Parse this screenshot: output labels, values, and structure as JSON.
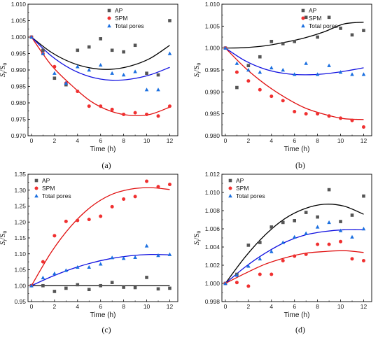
{
  "colors": {
    "AP": "#555555",
    "SPM": "#f03030",
    "Total pores": "#1a6fe0",
    "fitAP": "#000000",
    "fitSPM": "#e01010",
    "fitTotal": "#1010e0"
  },
  "chart_data": [
    {
      "type": "scatter",
      "panel_label": "(a)",
      "xlabel": "Time (h)",
      "ylabel": "S_i/S_0",
      "xlim": [
        -0.3,
        12.7
      ],
      "ylim": [
        0.97,
        1.01
      ],
      "xticks": [
        0,
        2,
        4,
        6,
        8,
        10,
        12
      ],
      "yticks": [
        0.97,
        0.975,
        0.98,
        0.985,
        0.99,
        0.995,
        1.0,
        1.005,
        1.01
      ],
      "ytick_labels": [
        "0.970",
        "0.975",
        "0.980",
        "0.985",
        "0.990",
        "0.995",
        "1.000",
        "1.005",
        "1.010"
      ],
      "legend": "top-right",
      "series": [
        {
          "name": "AP",
          "marker": "square",
          "x": [
            0,
            1,
            2,
            3,
            4,
            5,
            6,
            7,
            8,
            9,
            10,
            11,
            12
          ],
          "y": [
            1.0,
            0.996,
            0.9875,
            0.9855,
            0.996,
            0.997,
            0.9995,
            0.996,
            0.9955,
            0.9975,
            0.989,
            0.9885,
            1.005
          ],
          "fit": [
            1.0,
            0.9954,
            0.9923,
            0.9906,
            0.9902,
            0.9912,
            0.9935,
            0.9975
          ]
        },
        {
          "name": "SPM",
          "marker": "circle",
          "x": [
            0,
            1,
            2,
            3,
            4,
            5,
            6,
            7,
            8,
            9,
            10,
            11,
            12
          ],
          "y": [
            1.0,
            0.995,
            0.991,
            0.986,
            0.9835,
            0.979,
            0.979,
            0.978,
            0.9765,
            0.977,
            0.9765,
            0.976,
            0.979
          ],
          "fit": [
            1.0,
            0.9915,
            0.9855,
            0.9805,
            0.9775,
            0.9762,
            0.9765,
            0.9787
          ]
        },
        {
          "name": "Total pores",
          "marker": "triangle",
          "x": [
            0,
            1,
            2,
            3,
            4,
            5,
            6,
            7,
            8,
            9,
            10,
            11,
            12
          ],
          "y": [
            1.0,
            0.995,
            0.989,
            0.986,
            0.991,
            0.99,
            0.9915,
            0.989,
            0.9885,
            0.9895,
            0.984,
            0.984,
            0.995
          ],
          "fit": [
            1.0,
            0.9943,
            0.9903,
            0.9879,
            0.9869,
            0.9872,
            0.9885,
            0.9908
          ]
        }
      ]
    },
    {
      "type": "scatter",
      "panel_label": "(b)",
      "xlabel": "Time (h)",
      "ylabel": "S_i/S_0",
      "xlim": [
        -0.3,
        12.7
      ],
      "ylim": [
        0.98,
        1.01
      ],
      "xticks": [
        0,
        2,
        4,
        6,
        8,
        10,
        12
      ],
      "yticks": [
        0.98,
        0.985,
        0.99,
        0.995,
        1.0,
        1.005,
        1.01
      ],
      "ytick_labels": [
        "0.980",
        "0.985",
        "0.990",
        "0.995",
        "1.000",
        "1.005",
        "1.010"
      ],
      "legend": "top-right",
      "series": [
        {
          "name": "AP",
          "marker": "square",
          "x": [
            0,
            1,
            2,
            3,
            4,
            5,
            6,
            7,
            8,
            9,
            10,
            11,
            12
          ],
          "y": [
            1.0,
            0.991,
            0.996,
            0.998,
            1.0015,
            1.001,
            1.0015,
            1.007,
            1.0025,
            1.007,
            1.0045,
            1.003,
            1.004
          ],
          "fit": [
            1.0,
            1.0001,
            1.0005,
            1.0013,
            1.0023,
            1.0037,
            1.0055,
            1.0059
          ]
        },
        {
          "name": "SPM",
          "marker": "circle",
          "x": [
            0,
            1,
            2,
            3,
            4,
            5,
            6,
            7,
            8,
            9,
            10,
            11,
            12
          ],
          "y": [
            1.0,
            0.9945,
            0.9925,
            0.9905,
            0.989,
            0.988,
            0.9855,
            0.985,
            0.985,
            0.9845,
            0.984,
            0.9835,
            0.982
          ],
          "fit": [
            1.0,
            0.9955,
            0.9918,
            0.9888,
            0.9864,
            0.9849,
            0.9839,
            0.9837
          ]
        },
        {
          "name": "Total pores",
          "marker": "triangle",
          "x": [
            0,
            1,
            2,
            3,
            4,
            5,
            6,
            7,
            8,
            9,
            10,
            11,
            12
          ],
          "y": [
            1.0,
            0.9965,
            0.995,
            0.9945,
            0.9955,
            0.995,
            0.994,
            0.9965,
            0.994,
            0.996,
            0.9945,
            0.994,
            0.994
          ],
          "fit": [
            1.0,
            0.9971,
            0.9952,
            0.9942,
            0.9939,
            0.9941,
            0.9947,
            0.9955
          ]
        }
      ]
    },
    {
      "type": "scatter",
      "panel_label": "(c)",
      "xlabel": "Time (h)",
      "ylabel": "S_i/S_0",
      "xlim": [
        -0.3,
        12.7
      ],
      "ylim": [
        0.95,
        1.35
      ],
      "xticks": [
        0,
        2,
        4,
        6,
        8,
        10,
        12
      ],
      "yticks": [
        0.95,
        1.0,
        1.05,
        1.1,
        1.15,
        1.2,
        1.25,
        1.3,
        1.35
      ],
      "ytick_labels": [
        "0.95",
        "1.00",
        "1.05",
        "1.10",
        "1.15",
        "1.20",
        "1.25",
        "1.30",
        "1.35"
      ],
      "legend": "top-left",
      "series": [
        {
          "name": "AP",
          "marker": "square",
          "x": [
            0,
            1,
            2,
            3,
            4,
            5,
            6,
            7,
            8,
            9,
            10,
            11,
            12
          ],
          "y": [
            1.0,
            1.0,
            0.982,
            0.992,
            1.003,
            0.988,
            1.0,
            1.01,
            0.995,
            0.994,
            1.026,
            0.99,
            0.992
          ],
          "fit": [
            1.0,
            1.0,
            1.0,
            1.0,
            1.0,
            1.0,
            1.0,
            1.0
          ]
        },
        {
          "name": "SPM",
          "marker": "circle",
          "x": [
            0,
            1,
            2,
            3,
            4,
            5,
            6,
            7,
            8,
            9,
            10,
            11,
            12
          ],
          "y": [
            1.0,
            1.075,
            1.157,
            1.202,
            1.205,
            1.208,
            1.218,
            1.248,
            1.272,
            1.28,
            1.328,
            1.311,
            1.318
          ],
          "fit": [
            1.0,
            1.105,
            1.187,
            1.247,
            1.285,
            1.303,
            1.308,
            1.302
          ]
        },
        {
          "name": "Total pores",
          "marker": "triangle",
          "x": [
            0,
            1,
            2,
            3,
            4,
            5,
            6,
            7,
            8,
            9,
            10,
            11,
            12
          ],
          "y": [
            1.0,
            1.025,
            1.038,
            1.048,
            1.058,
            1.058,
            1.068,
            1.088,
            1.086,
            1.089,
            1.125,
            1.095,
            1.098
          ],
          "fit": [
            1.0,
            1.028,
            1.052,
            1.071,
            1.085,
            1.094,
            1.098,
            1.097
          ]
        }
      ]
    },
    {
      "type": "scatter",
      "panel_label": "(d)",
      "xlabel": "Time (h)",
      "ylabel": "S_i/S_0",
      "xlim": [
        -0.3,
        12.7
      ],
      "ylim": [
        0.998,
        1.012
      ],
      "xticks": [
        0,
        2,
        4,
        6,
        8,
        10,
        12
      ],
      "yticks": [
        0.998,
        1.0,
        1.002,
        1.004,
        1.006,
        1.008,
        1.01,
        1.012
      ],
      "ytick_labels": [
        "0.998",
        "1.000",
        "1.002",
        "1.004",
        "1.006",
        "1.008",
        "1.010",
        "1.012"
      ],
      "legend": "top-left",
      "series": [
        {
          "name": "AP",
          "marker": "square",
          "x": [
            0,
            1,
            2,
            3,
            4,
            5,
            6,
            7,
            8,
            9,
            10,
            11,
            12
          ],
          "y": [
            1.0,
            1.001,
            1.0042,
            1.0045,
            1.0062,
            1.0067,
            1.0069,
            1.0078,
            1.0073,
            1.0103,
            1.0068,
            1.0075,
            1.0096
          ],
          "fit": [
            1.0,
            1.0029,
            1.0053,
            1.0071,
            1.0082,
            1.0087,
            1.0085,
            1.0076
          ]
        },
        {
          "name": "SPM",
          "marker": "circle",
          "x": [
            0,
            1,
            2,
            3,
            4,
            5,
            6,
            7,
            8,
            9,
            10,
            11,
            12
          ],
          "y": [
            1.0,
            1.0001,
            0.9997,
            1.001,
            1.001,
            1.0025,
            1.003,
            1.0032,
            1.0043,
            1.0043,
            1.0046,
            1.0027,
            1.0025
          ],
          "fit": [
            1.0,
            1.0011,
            1.0021,
            1.0028,
            1.0033,
            1.0035,
            1.0036,
            1.0034
          ]
        },
        {
          "name": "Total pores",
          "marker": "triangle",
          "x": [
            0,
            1,
            2,
            3,
            4,
            5,
            6,
            7,
            8,
            9,
            10,
            11,
            12
          ],
          "y": [
            1.0,
            1.0009,
            1.0019,
            1.0027,
            1.0035,
            1.0045,
            1.0051,
            1.0055,
            1.0062,
            1.0067,
            1.0058,
            1.0051,
            1.006
          ],
          "fit": [
            1.0,
            1.0018,
            1.0033,
            1.0045,
            1.0053,
            1.0057,
            1.0059,
            1.0059
          ]
        }
      ]
    }
  ]
}
